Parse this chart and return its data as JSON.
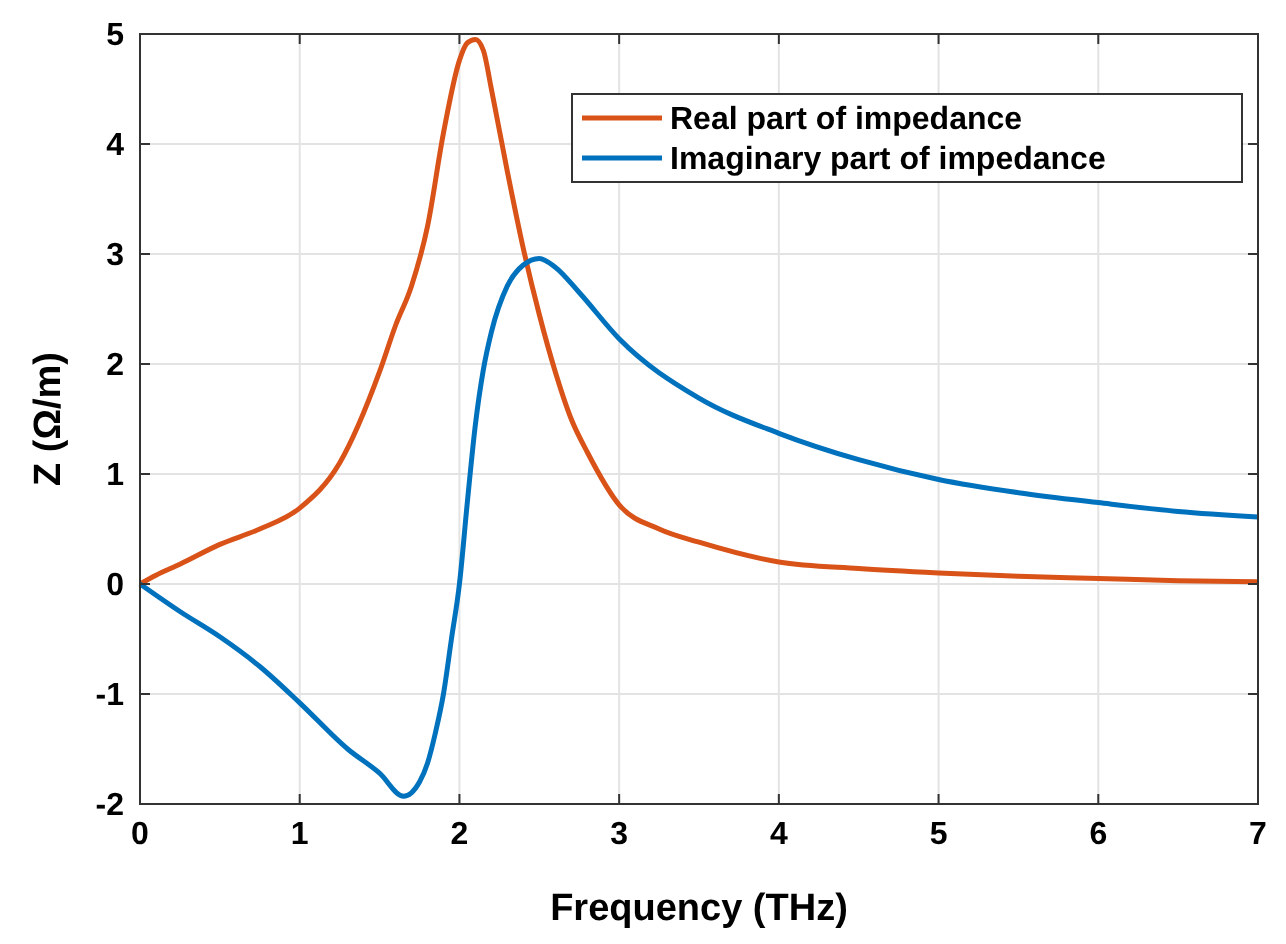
{
  "chart_data": {
    "type": "line",
    "xlabel": "Frequency (THz)",
    "ylabel": "Z (Ω/m)",
    "xlim": [
      0,
      7
    ],
    "ylim": [
      -2,
      5
    ],
    "xticks": [
      0,
      1,
      2,
      3,
      4,
      5,
      6,
      7
    ],
    "yticks": [
      -2,
      -1,
      0,
      1,
      2,
      3,
      4,
      5
    ],
    "grid": true,
    "legend": "top right",
    "line_style": "solid",
    "marker": "none",
    "series": [
      {
        "name": "Real part of impedance",
        "color": "#d95319",
        "x": [
          0,
          0.1,
          0.25,
          0.5,
          0.75,
          1,
          1.25,
          1.5,
          1.6,
          1.7,
          1.8,
          1.9,
          2,
          2.05,
          2.1,
          2.15,
          2.2,
          2.3,
          2.4,
          2.5,
          2.6,
          2.7,
          2.8,
          3,
          3.25,
          3.5,
          4,
          4.5,
          5,
          5.5,
          6,
          6.5,
          7
        ],
        "values": [
          0,
          0.08,
          0.18,
          0.36,
          0.5,
          0.69,
          1.1,
          1.93,
          2.35,
          2.71,
          3.25,
          4.1,
          4.76,
          4.92,
          4.95,
          4.85,
          4.5,
          3.75,
          3.05,
          2.45,
          1.93,
          1.5,
          1.2,
          0.72,
          0.5,
          0.38,
          0.2,
          0.14,
          0.1,
          0.07,
          0.05,
          0.03,
          0.02
        ]
      },
      {
        "name": "Imaginary part of impedance",
        "color": "#0072bd",
        "x": [
          0,
          0.25,
          0.5,
          0.75,
          1,
          1.3,
          1.5,
          1.65,
          1.75,
          1.8,
          1.85,
          1.9,
          1.95,
          2,
          2.05,
          2.1,
          2.15,
          2.2,
          2.3,
          2.4,
          2.5,
          2.6,
          2.75,
          3,
          3.5,
          4,
          4.5,
          5,
          5.5,
          6,
          6.5,
          7
        ],
        "values": [
          0,
          -0.25,
          -0.48,
          -0.75,
          -1.08,
          -1.5,
          -1.72,
          -1.93,
          -1.8,
          -1.63,
          -1.35,
          -1.0,
          -0.5,
          0,
          0.75,
          1.45,
          1.95,
          2.29,
          2.71,
          2.9,
          2.96,
          2.88,
          2.65,
          2.23,
          1.69,
          1.37,
          1.13,
          0.95,
          0.83,
          0.74,
          0.66,
          0.61
        ]
      }
    ]
  }
}
